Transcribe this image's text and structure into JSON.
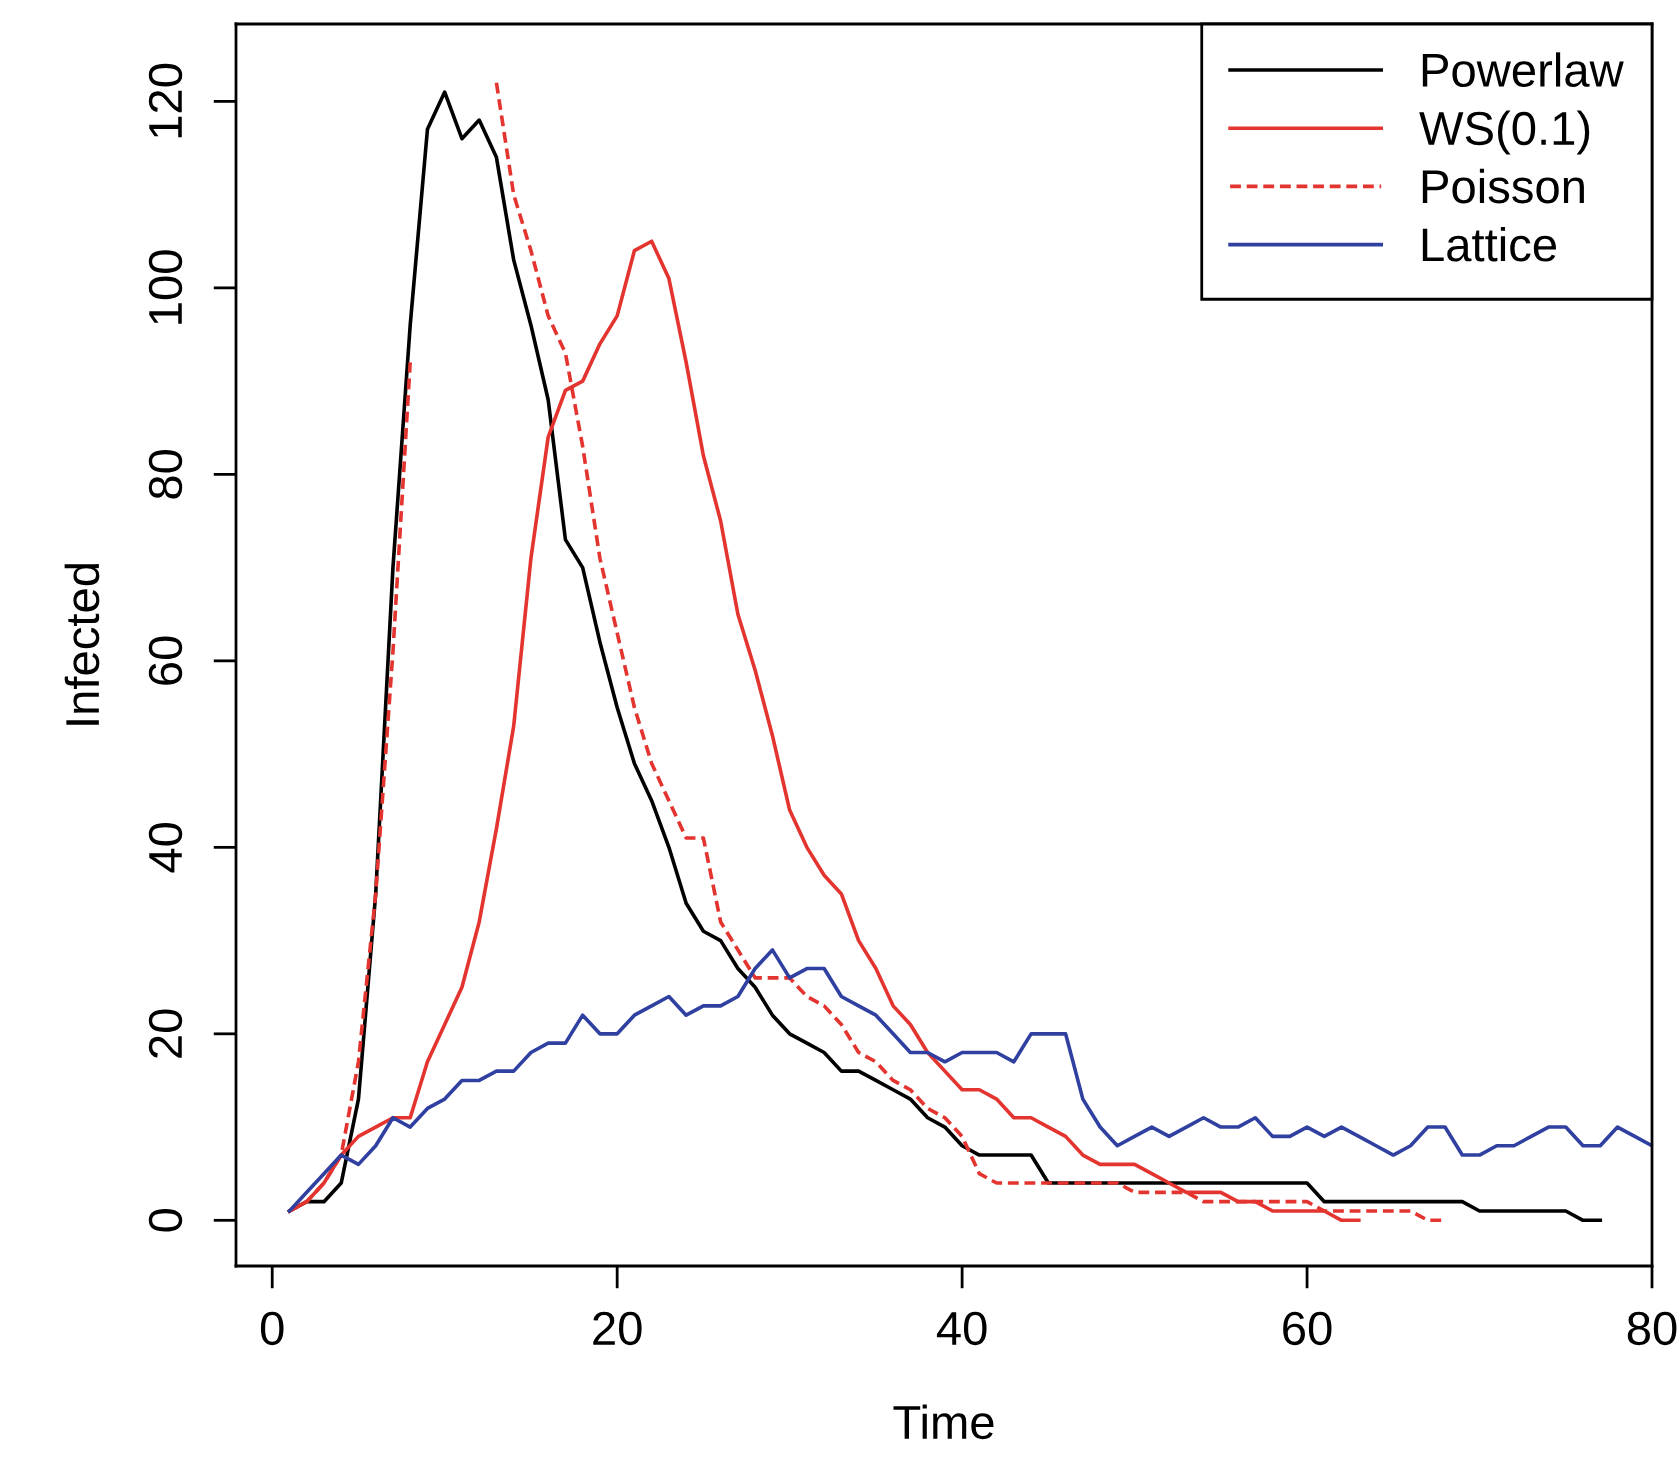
{
  "chart_data": {
    "type": "line",
    "xlabel": "Time",
    "ylabel": "Infected",
    "xlim": [
      -2.1,
      80
    ],
    "ylim": [
      -4.9,
      128.3
    ],
    "xticks": [
      0,
      20,
      40,
      60,
      80
    ],
    "yticks": [
      0,
      20,
      40,
      60,
      80,
      100,
      120
    ],
    "legend": "top right",
    "grid": false,
    "series": [
      {
        "name": "Powerlaw",
        "color": "#000000",
        "line_style": "solid",
        "x": [
          1,
          2,
          3,
          4,
          5,
          6,
          7,
          8,
          9,
          10,
          11,
          12,
          13,
          14,
          15,
          16,
          17,
          18,
          19,
          20,
          21,
          22,
          23,
          24,
          25,
          26,
          27,
          28,
          29,
          30,
          31,
          32,
          33,
          34,
          35,
          36,
          37,
          38,
          39,
          40,
          41,
          42,
          43,
          44,
          45,
          46,
          47,
          48,
          49,
          50,
          51,
          52,
          53,
          54,
          55,
          56,
          57,
          58,
          59,
          60,
          61,
          62,
          63,
          64,
          65,
          66,
          67,
          68,
          69,
          70,
          71,
          72,
          73,
          74,
          75,
          76,
          77
        ],
        "values": [
          1,
          2,
          2,
          4,
          13,
          35,
          70,
          96,
          117,
          121,
          116,
          118,
          114,
          103,
          96,
          88,
          73,
          70,
          62,
          55,
          49,
          45,
          40,
          34,
          31,
          30,
          27,
          25,
          22,
          20,
          19,
          18,
          16,
          16,
          15,
          14,
          13,
          11,
          10,
          8,
          7,
          7,
          7,
          7,
          4,
          4,
          4,
          4,
          4,
          4,
          4,
          4,
          4,
          4,
          4,
          4,
          4,
          4,
          4,
          4,
          2,
          2,
          2,
          2,
          2,
          2,
          2,
          2,
          2,
          1,
          1,
          1,
          1,
          1,
          1,
          0,
          0
        ]
      },
      {
        "name": "WS(0.1)",
        "color": "#e3342f",
        "line_style": "solid",
        "x": [
          1,
          2,
          3,
          4,
          5,
          6,
          7,
          8,
          9,
          10,
          11,
          12,
          13,
          14,
          15,
          16,
          17,
          18,
          19,
          20,
          21,
          22,
          23,
          24,
          25,
          26,
          27,
          28,
          29,
          30,
          31,
          32,
          33,
          34,
          35,
          36,
          37,
          38,
          39,
          40,
          41,
          42,
          43,
          44,
          45,
          46,
          47,
          48,
          49,
          50,
          51,
          52,
          53,
          54,
          55,
          56,
          57,
          58,
          59,
          60,
          61,
          62,
          63
        ],
        "values": [
          1,
          2,
          4,
          7,
          9,
          10,
          11,
          11,
          17,
          21,
          25,
          32,
          42,
          53,
          71,
          84,
          89,
          90,
          94,
          97,
          104,
          105,
          101,
          92,
          82,
          75,
          65,
          59,
          52,
          44,
          40,
          37,
          35,
          30,
          27,
          23,
          21,
          18,
          16,
          14,
          14,
          13,
          11,
          11,
          10,
          9,
          7,
          6,
          6,
          6,
          5,
          4,
          3,
          3,
          3,
          2,
          2,
          1,
          1,
          1,
          1,
          0,
          0
        ]
      },
      {
        "name": "Poisson",
        "color": "#e3342f",
        "line_style": "dashed",
        "x": [
          1,
          2,
          3,
          4,
          5,
          6,
          7,
          8,
          9,
          10,
          11,
          12,
          13,
          14,
          15,
          16,
          17,
          18,
          19,
          20,
          21,
          22,
          23,
          24,
          25,
          26,
          27,
          28,
          29,
          30,
          31,
          32,
          33,
          34,
          35,
          36,
          37,
          38,
          39,
          40,
          41,
          42,
          43,
          44,
          45,
          46,
          47,
          48,
          49,
          50,
          51,
          52,
          53,
          54,
          55,
          56,
          57,
          58,
          59,
          60,
          61,
          62,
          63,
          64,
          65,
          66,
          67,
          68
        ],
        "values": [
          1,
          2,
          4,
          7,
          17,
          35,
          61,
          92,
          null,
          null,
          null,
          null,
          122,
          110,
          104,
          97,
          93,
          83,
          71,
          63,
          55,
          49,
          45,
          41,
          41,
          32,
          29,
          26,
          26,
          26,
          24,
          23,
          21,
          18,
          17,
          15,
          14,
          12,
          11,
          9,
          5,
          4,
          4,
          4,
          4,
          4,
          4,
          4,
          4,
          3,
          3,
          3,
          3,
          2,
          2,
          2,
          2,
          2,
          2,
          2,
          1,
          1,
          1,
          1,
          1,
          1,
          0,
          0
        ]
      },
      {
        "name": "Lattice",
        "color": "#3040a0",
        "line_style": "solid",
        "x": [
          1,
          2,
          3,
          4,
          5,
          6,
          7,
          8,
          9,
          10,
          11,
          12,
          13,
          14,
          15,
          16,
          17,
          18,
          19,
          20,
          21,
          22,
          23,
          24,
          25,
          26,
          27,
          28,
          29,
          30,
          31,
          32,
          33,
          34,
          35,
          36,
          37,
          38,
          39,
          40,
          41,
          42,
          43,
          44,
          45,
          46,
          47,
          48,
          49,
          50,
          51,
          52,
          53,
          54,
          55,
          56,
          57,
          58,
          59,
          60,
          61,
          62,
          63,
          64,
          65,
          66,
          67,
          68,
          69,
          70,
          71,
          72,
          73,
          74,
          75,
          76,
          77,
          78,
          79,
          80
        ],
        "values": [
          1,
          3,
          5,
          7,
          6,
          8,
          11,
          10,
          12,
          13,
          15,
          15,
          16,
          16,
          18,
          19,
          19,
          22,
          20,
          20,
          22,
          23,
          24,
          22,
          23,
          23,
          24,
          27,
          29,
          26,
          27,
          27,
          24,
          23,
          22,
          20,
          18,
          18,
          17,
          18,
          18,
          18,
          17,
          20,
          20,
          20,
          13,
          10,
          8,
          9,
          10,
          9,
          10,
          11,
          10,
          10,
          11,
          9,
          9,
          10,
          9,
          10,
          9,
          8,
          7,
          8,
          10,
          10,
          7,
          7,
          8,
          8,
          9,
          10,
          10,
          8,
          8,
          10,
          9,
          8
        ]
      }
    ]
  }
}
